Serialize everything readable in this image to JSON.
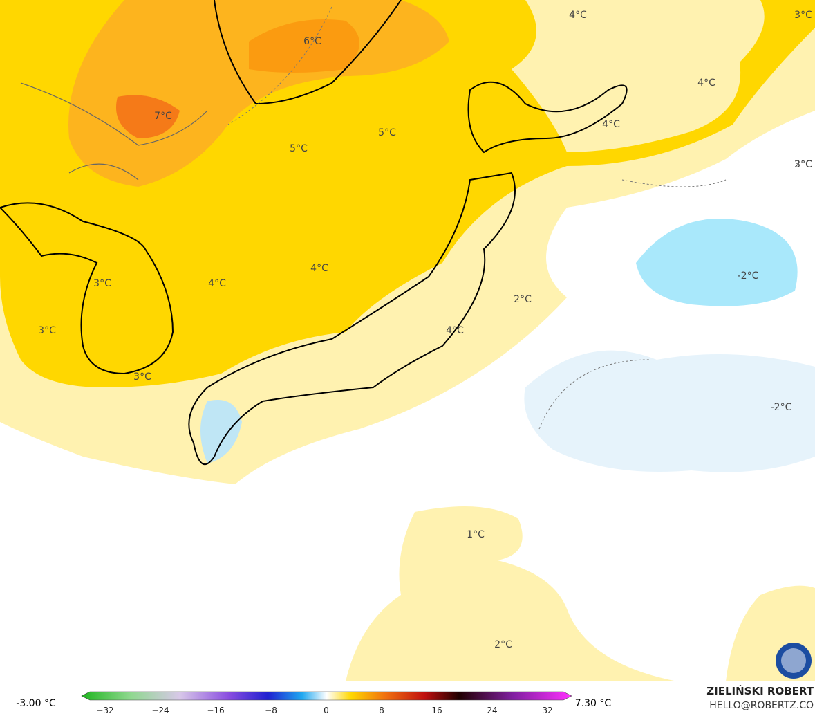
{
  "map": {
    "contour_labels": [
      "6°C",
      "7°C",
      "5°C",
      "5°C",
      "4°C",
      "4°C",
      "4°C",
      "3°C",
      "3°C",
      "3°C",
      "3°C",
      "4°C",
      "4°C",
      "4°C",
      "3°C",
      "2°C",
      "2°C",
      "-2°C",
      "-2°C",
      "1°C",
      "2°C"
    ],
    "colorbar": {
      "min_label": "-3.00 °C",
      "max_label": "7.30 °C",
      "ticks": [
        "−32",
        "−24",
        "−16",
        "−8",
        "0",
        "8",
        "16",
        "24",
        "32"
      ]
    },
    "credit": {
      "author": "ZIELIŃSKI ROBERT",
      "contact": "HELLO@ROBERTZ.CO"
    }
  }
}
